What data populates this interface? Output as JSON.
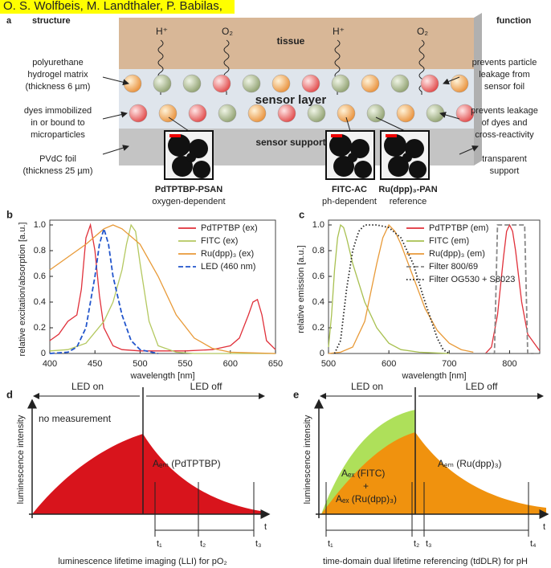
{
  "header": "O. S. Wolfbeis, M. Landthaler, P. Babilas,",
  "panel_a": {
    "label": "a",
    "structure": "structure",
    "function": "function",
    "tissue": "tissue",
    "species": [
      "H⁺",
      "O₂",
      "H⁺",
      "O₂"
    ],
    "left_notes": [
      [
        "polyurethane",
        "hydrogel matrix",
        "(thickness 6 µm)"
      ],
      [
        "dyes immobilized",
        "in or bound to",
        "microparticles"
      ],
      [
        "PVdC foil",
        "(thickness 25 µm)"
      ]
    ],
    "right_notes": [
      [
        "prevents particle",
        "leakage from",
        "sensor foil"
      ],
      [
        "prevents leakage",
        "of dyes and",
        "cross-reactivity"
      ],
      [
        "transparent",
        "support"
      ]
    ],
    "sensor_layer": "sensor layer",
    "sensor_support": "sensor support",
    "particles": [
      {
        "name": "PdTPTBP-PSAN",
        "role": "oxygen-dependent"
      },
      {
        "name": "FITC-AC",
        "role": "ph-dependent"
      },
      {
        "name": "Ru(dpp)₃-PAN",
        "role": "reference"
      }
    ]
  },
  "chart_data": [
    {
      "type": "line",
      "label": "b",
      "xlabel": "wavelength [nm]",
      "ylabel": "relative excitation/absorption [a.u.]",
      "xlim": [
        400,
        650
      ],
      "xticks": [
        400,
        450,
        500,
        550,
        600,
        650
      ],
      "ylim": [
        0,
        1
      ],
      "yticks": [
        0,
        0.2,
        0.4,
        0.6,
        0.8,
        {
          "value": 1,
          "label": "1.0"
        }
      ],
      "legend": "upper right",
      "series": [
        {
          "name": "PdTPTBP (ex)",
          "color": "#e0303a",
          "dash": "solid",
          "x": [
            400,
            410,
            420,
            430,
            435,
            440,
            445,
            450,
            455,
            460,
            470,
            480,
            500,
            550,
            580,
            600,
            610,
            620,
            625,
            630,
            635,
            640,
            650
          ],
          "values": [
            0.1,
            0.15,
            0.25,
            0.3,
            0.5,
            0.9,
            1.0,
            0.8,
            0.45,
            0.2,
            0.06,
            0.03,
            0.02,
            0.02,
            0.03,
            0.06,
            0.12,
            0.3,
            0.4,
            0.42,
            0.3,
            0.1,
            0.03
          ]
        },
        {
          "name": "FITC (ex)",
          "color": "#b4c860",
          "dash": "solid",
          "x": [
            400,
            420,
            440,
            460,
            470,
            480,
            485,
            490,
            495,
            500,
            510,
            520,
            540,
            560,
            600,
            650
          ],
          "values": [
            0.02,
            0.03,
            0.08,
            0.25,
            0.4,
            0.65,
            0.85,
            1.0,
            0.95,
            0.7,
            0.25,
            0.06,
            0.01,
            0,
            0,
            0
          ]
        },
        {
          "name": "Ru(dpp)₃ (ex)",
          "color": "#e89a38",
          "dash": "solid",
          "x": [
            400,
            420,
            440,
            460,
            470,
            480,
            500,
            520,
            540,
            560,
            580,
            600,
            650
          ],
          "values": [
            0.65,
            0.75,
            0.85,
            0.97,
            1.0,
            0.97,
            0.85,
            0.6,
            0.3,
            0.12,
            0.04,
            0.01,
            0
          ]
        },
        {
          "name": "LED (460 nm)",
          "color": "#2255cc",
          "dash": "dashed",
          "x": [
            400,
            420,
            430,
            440,
            450,
            455,
            460,
            465,
            470,
            480,
            490,
            500,
            520
          ],
          "values": [
            0,
            0.01,
            0.05,
            0.2,
            0.6,
            0.85,
            0.97,
            0.85,
            0.6,
            0.3,
            0.1,
            0.03,
            0
          ]
        }
      ]
    },
    {
      "type": "line",
      "label": "c",
      "xlabel": "wavelength [nm]",
      "ylabel": "relative emission [a.u.]",
      "xlim": [
        500,
        850
      ],
      "xticks": [
        500,
        600,
        700,
        800
      ],
      "ylim": [
        0,
        1
      ],
      "yticks": [
        0,
        0.2,
        0.4,
        0.6,
        0.8,
        {
          "value": 1,
          "label": "1.0"
        }
      ],
      "legend": "upper right",
      "series": [
        {
          "name": "PdTPTBP (em)",
          "color": "#e0303a",
          "dash": "solid",
          "x": [
            760,
            770,
            780,
            790,
            795,
            800,
            805,
            810,
            820,
            830,
            850
          ],
          "values": [
            0,
            0.05,
            0.3,
            0.75,
            0.95,
            1.0,
            0.95,
            0.8,
            0.4,
            0.15,
            0.02
          ]
        },
        {
          "name": "FITC (em)",
          "color": "#a8c050",
          "dash": "solid",
          "x": [
            500,
            505,
            510,
            515,
            520,
            525,
            530,
            540,
            560,
            580,
            600,
            620,
            650,
            700
          ],
          "values": [
            0.05,
            0.3,
            0.65,
            0.9,
            1.0,
            0.98,
            0.9,
            0.7,
            0.4,
            0.2,
            0.08,
            0.03,
            0.01,
            0
          ]
        },
        {
          "name": "Ru(dpp)₃ (em)",
          "color": "#e89a38",
          "dash": "solid",
          "x": [
            500,
            520,
            540,
            560,
            580,
            590,
            600,
            610,
            620,
            640,
            660,
            680,
            700,
            720,
            740
          ],
          "values": [
            0,
            0.01,
            0.05,
            0.25,
            0.7,
            0.9,
            1.0,
            0.95,
            0.85,
            0.6,
            0.35,
            0.18,
            0.08,
            0.03,
            0.01
          ]
        },
        {
          "name": "Filter 800/69",
          "color": "#888888",
          "dash": "dashed",
          "x": [
            760,
            775,
            780,
            825,
            830,
            840
          ],
          "values": [
            0,
            0,
            1.0,
            1.0,
            0,
            0
          ]
        },
        {
          "name": "Filter OG530 + S8023",
          "color": "#222222",
          "dash": "dotted",
          "x": [
            510,
            520,
            530,
            540,
            550,
            560,
            580,
            600,
            620,
            640,
            660,
            680,
            690,
            700
          ],
          "values": [
            0,
            0.1,
            0.5,
            0.8,
            0.95,
            1.0,
            1.0,
            0.98,
            0.9,
            0.7,
            0.4,
            0.12,
            0.03,
            0
          ]
        }
      ]
    }
  ],
  "panel_d": {
    "label": "d",
    "led_on": "LED on",
    "led_off": "LED off",
    "note": "no measurement",
    "area": "Aₑₘ (PdTPTBP)",
    "ylabel": "luminescence intensity",
    "axis": "t",
    "times": [
      "t₁",
      "t₂",
      "t₃"
    ],
    "caption": "luminescence lifetime imaging (LLI) for pO₂"
  },
  "panel_e": {
    "label": "e",
    "led_on": "LED on",
    "led_off": "LED off",
    "areas": [
      "Aₑₓ (FITC)",
      "+",
      "Aₑₓ (Ru(dpp)₃)"
    ],
    "area_off": "Aₑₘ (Ru(dpp)₃)",
    "ylabel": "luminescence intensity",
    "axis": "t",
    "times": [
      "t₁",
      "t₂",
      "t₃",
      "t₄"
    ],
    "caption": "time-domain dual lifetime referencing (tdDLR) for pH"
  }
}
